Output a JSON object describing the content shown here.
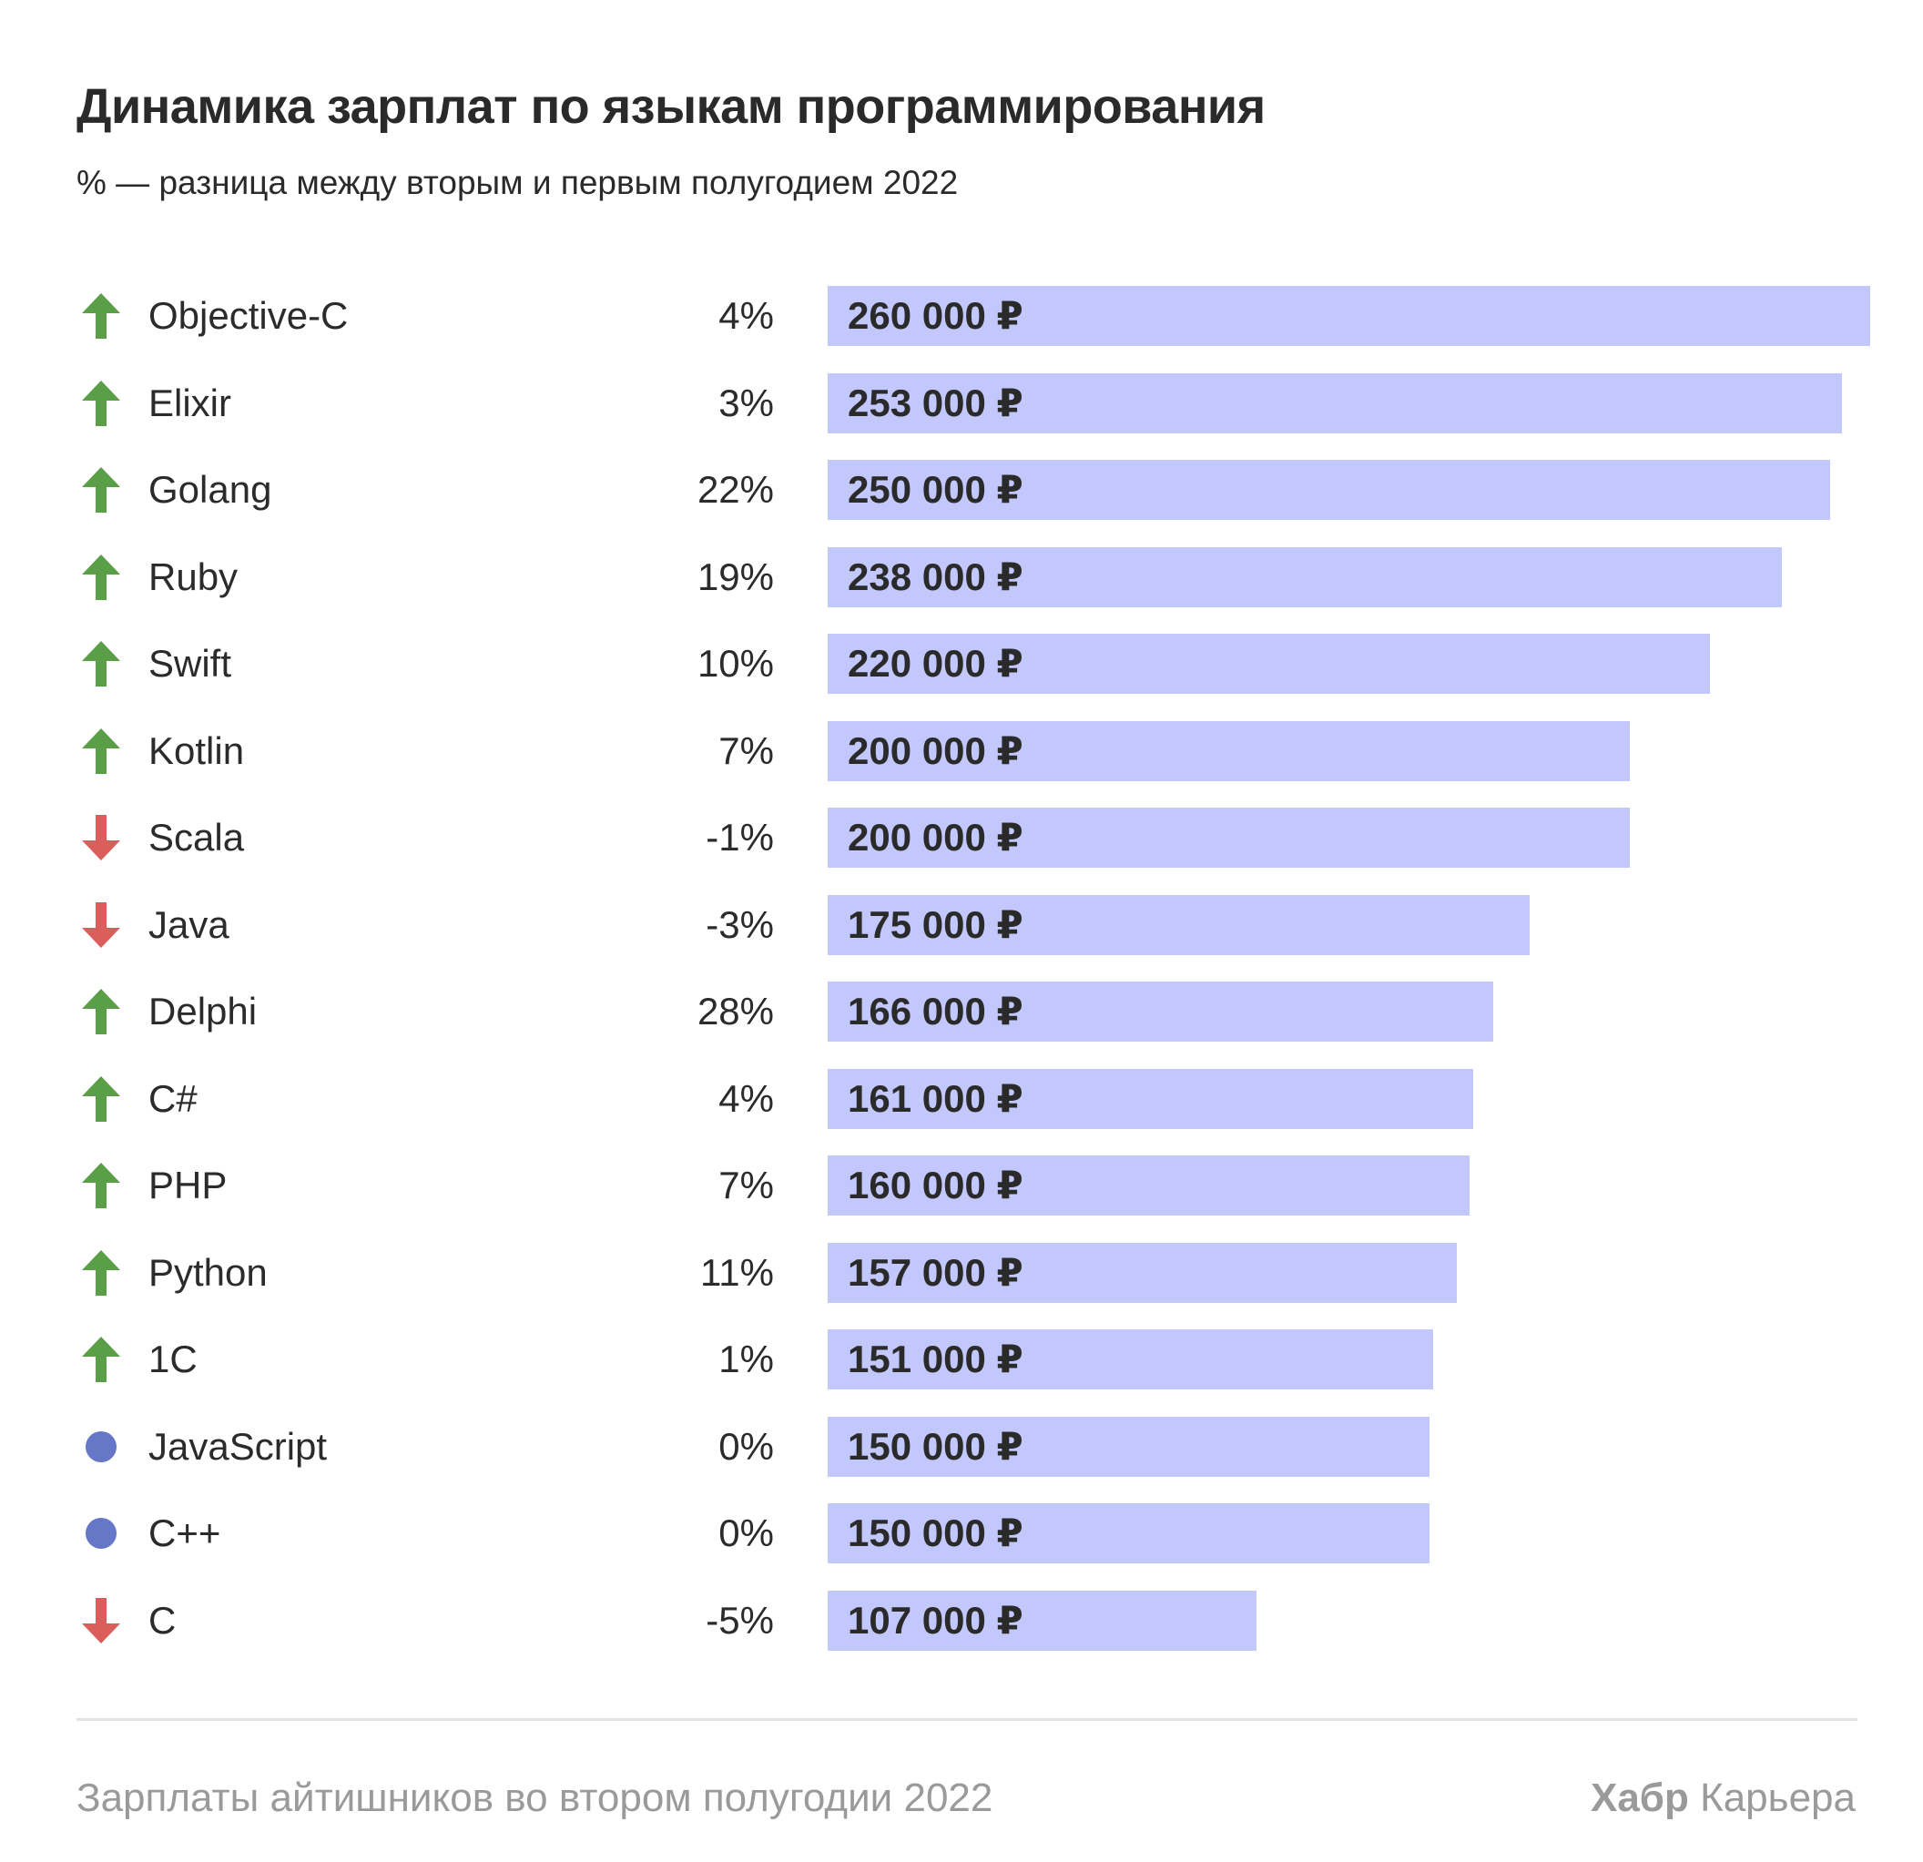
{
  "header": {
    "title": "Динамика зарплат по языкам программирования",
    "subtitle": "% — разница между вторым и первым полугодием 2022"
  },
  "colors": {
    "bar": "#c2c8fb",
    "up": "#5a9e48",
    "down": "#d95e5c",
    "flat": "#6577c6"
  },
  "chart_data": {
    "type": "bar",
    "orientation": "horizontal",
    "categories": [
      "Objective-C",
      "Elixir",
      "Golang",
      "Ruby",
      "Swift",
      "Kotlin",
      "Scala",
      "Java",
      "Delphi",
      "C#",
      "PHP",
      "Python",
      "1C",
      "JavaScript",
      "C++",
      "C"
    ],
    "values": [
      260000,
      253000,
      250000,
      238000,
      220000,
      200000,
      200000,
      175000,
      166000,
      161000,
      160000,
      157000,
      151000,
      150000,
      150000,
      107000
    ],
    "value_labels": [
      "260 000 ₽",
      "253 000 ₽",
      "250 000 ₽",
      "238 000 ₽",
      "220 000 ₽",
      "200 000 ₽",
      "200 000 ₽",
      "175 000 ₽",
      "166 000 ₽",
      "161 000 ₽",
      "160 000 ₽",
      "157 000 ₽",
      "151 000 ₽",
      "150 000 ₽",
      "150 000 ₽",
      "107 000 ₽"
    ],
    "changes": [
      "4%",
      "3%",
      "22%",
      "19%",
      "10%",
      "7%",
      "-1%",
      "-3%",
      "28%",
      "4%",
      "7%",
      "11%",
      "1%",
      "0%",
      "0%",
      "-5%"
    ],
    "trends": [
      "up",
      "up",
      "up",
      "up",
      "up",
      "up",
      "down",
      "down",
      "up",
      "up",
      "up",
      "up",
      "up",
      "flat",
      "flat",
      "down"
    ],
    "xlim": [
      0,
      260000
    ],
    "grid": false,
    "legend": "none"
  },
  "footer": {
    "source": "Зарплаты айтишников во втором полугодии 2022",
    "brand_bold": "Хабр",
    "brand_rest": " Карьера"
  }
}
